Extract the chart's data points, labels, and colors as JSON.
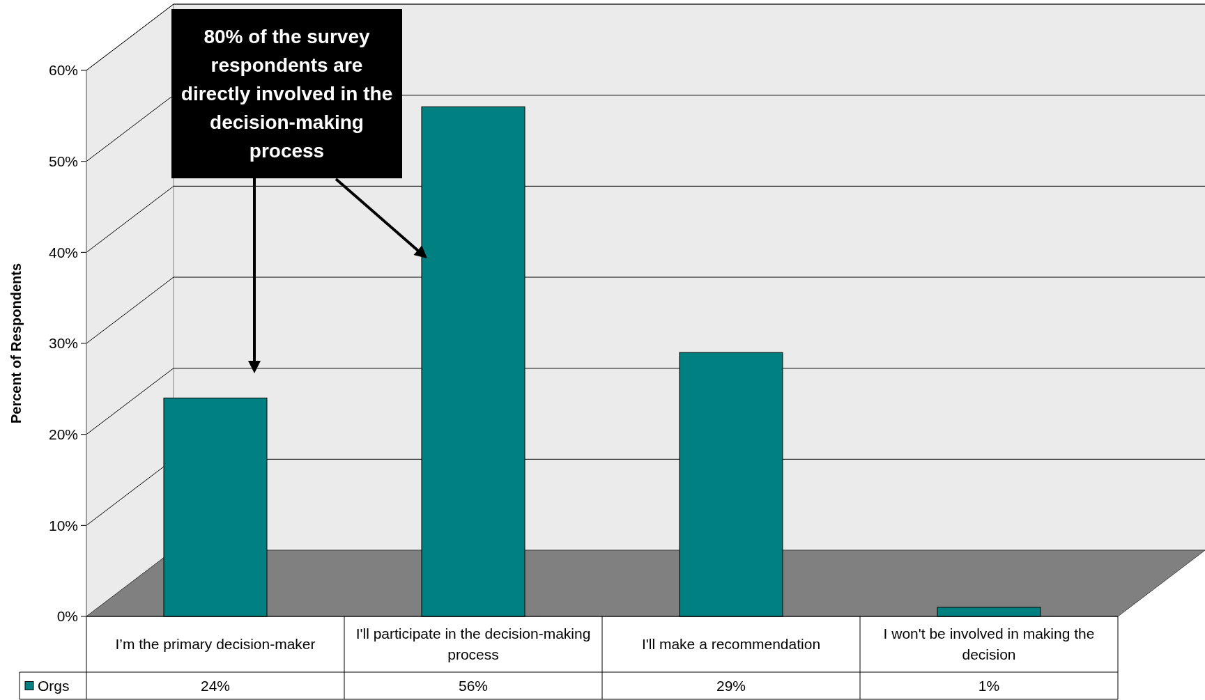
{
  "chart_data": {
    "type": "bar",
    "ylabel": "Percent of Respondents",
    "categories": [
      "I’m the primary decision-maker",
      "I'll participate in the decision-making process",
      "I'll make a recommendation",
      "I won't be involved in making the decision"
    ],
    "series": [
      {
        "name": "Orgs",
        "color": "#008080",
        "values": [
          24,
          56,
          29,
          1
        ],
        "value_labels": [
          "24%",
          "56%",
          "29%",
          "1%"
        ]
      }
    ],
    "ylim": [
      0,
      60
    ],
    "yticks": [
      {
        "value": 0,
        "label": "0%"
      },
      {
        "value": 10,
        "label": "10%"
      },
      {
        "value": 20,
        "label": "20%"
      },
      {
        "value": 30,
        "label": "30%"
      },
      {
        "value": 40,
        "label": "40%"
      },
      {
        "value": 50,
        "label": "50%"
      },
      {
        "value": 60,
        "label": "60%"
      }
    ],
    "grid": "y",
    "legend": "bottom left",
    "annotations": [
      "80% of the survey respondents are directly involved in the decision-making process"
    ]
  }
}
